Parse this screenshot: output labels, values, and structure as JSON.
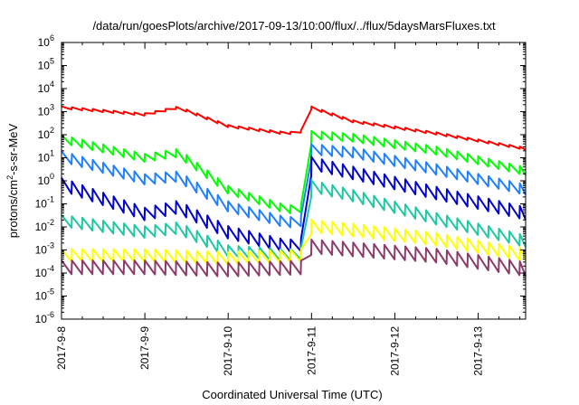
{
  "chart_data": {
    "type": "line",
    "title": "/data/run/goesPlots/archive/2017-09-13/10:00/flux/../flux/5daysMarsFluxes.txt",
    "xlabel": "Coordinated Universal Time (UTC)",
    "ylabel_parts": {
      "pre": "protons/cm",
      "sup": "2",
      "post": "-s-sr-MeV"
    },
    "x_range": [
      "2017-09-08",
      "2017-09-13 13:40"
    ],
    "x_ticks": [
      "2017-9-8",
      "2017-9-9",
      "2017-9-10",
      "2017-9-11",
      "2017-9-12",
      "2017-9-13"
    ],
    "y_scale": "log",
    "y_range": [
      1e-06,
      1000000.0
    ],
    "y_ticks": [
      {
        "base": "10",
        "exp": "-6"
      },
      {
        "base": "10",
        "exp": "-5"
      },
      {
        "base": "10",
        "exp": "-4"
      },
      {
        "base": "10",
        "exp": "-3"
      },
      {
        "base": "10",
        "exp": "-2"
      },
      {
        "base": "10",
        "exp": "-1"
      },
      {
        "base": "10",
        "exp": "0"
      },
      {
        "base": "10",
        "exp": "1"
      },
      {
        "base": "10",
        "exp": "2"
      },
      {
        "base": "10",
        "exp": "3"
      },
      {
        "base": "10",
        "exp": "4"
      },
      {
        "base": "10",
        "exp": "5"
      },
      {
        "base": "10",
        "exp": "6"
      }
    ],
    "grid": false,
    "legend": "none",
    "sawtooth_period_hours": 3,
    "series": [
      {
        "color": "#ff0000",
        "anchors": [
          [
            0,
            1600.0
          ],
          [
            1,
            800.0
          ],
          [
            1.4,
            1600.0
          ],
          [
            2,
            250.0
          ],
          [
            2.7,
            120.0
          ],
          [
            2.9,
            150.0
          ],
          [
            3.0,
            1600.0
          ],
          [
            3.5,
            400.0
          ],
          [
            4.5,
            120.0
          ],
          [
            5.6,
            25.0
          ]
        ]
      },
      {
        "color": "#00ff00",
        "anchors": [
          [
            0,
            80.0
          ],
          [
            1,
            12.0
          ],
          [
            1.4,
            20.0
          ],
          [
            2,
            0.5
          ],
          [
            2.7,
            0.07
          ],
          [
            2.95,
            0.08
          ],
          [
            3.0,
            120.0
          ],
          [
            3.5,
            90.0
          ],
          [
            4.5,
            25.0
          ],
          [
            5.6,
            3
          ]
        ]
      },
      {
        "color": "#1e7fff",
        "anchors": [
          [
            0,
            15.0
          ],
          [
            1,
            1.5
          ],
          [
            1.4,
            2
          ],
          [
            2,
            0.1
          ],
          [
            2.7,
            0.02
          ],
          [
            2.95,
            0.025
          ],
          [
            3.0,
            30.0
          ],
          [
            3.5,
            22.0
          ],
          [
            4.5,
            4
          ],
          [
            5.6,
            0.5
          ]
        ]
      },
      {
        "color": "#0000cc",
        "anchors": [
          [
            0,
            1
          ],
          [
            1,
            0.05
          ],
          [
            1.4,
            0.1
          ],
          [
            2,
            0.008
          ],
          [
            2.7,
            0.002
          ],
          [
            2.95,
            0.0025
          ],
          [
            3.0,
            8
          ],
          [
            3.5,
            3
          ],
          [
            4.5,
            0.4
          ],
          [
            5.6,
            0.05
          ]
        ]
      },
      {
        "color": "#1bc8a0",
        "anchors": [
          [
            0,
            0.025
          ],
          [
            1,
            0.008
          ],
          [
            1.4,
            0.012
          ],
          [
            2,
            0.0012
          ],
          [
            2.7,
            0.0008
          ],
          [
            2.95,
            0.001
          ],
          [
            3.0,
            0.8
          ],
          [
            3.5,
            0.3
          ],
          [
            4.5,
            0.03
          ],
          [
            5.6,
            0.003
          ]
        ]
      },
      {
        "color": "#ffff00",
        "anchors": [
          [
            0,
            0.0008
          ],
          [
            1,
            0.0008
          ],
          [
            2,
            0.0006
          ],
          [
            2.95,
            0.0008
          ],
          [
            3.0,
            0.015
          ],
          [
            3.5,
            0.01
          ],
          [
            4.5,
            0.004
          ],
          [
            5.6,
            0.0008
          ]
        ]
      },
      {
        "color": "#8b3a6a",
        "anchors": [
          [
            0,
            0.00025
          ],
          [
            1,
            0.00025
          ],
          [
            2,
            0.0002
          ],
          [
            2.95,
            0.00025
          ],
          [
            3.0,
            0.002
          ],
          [
            3.5,
            0.0015
          ],
          [
            4.5,
            0.0008
          ],
          [
            5.6,
            0.0002
          ]
        ]
      }
    ]
  }
}
